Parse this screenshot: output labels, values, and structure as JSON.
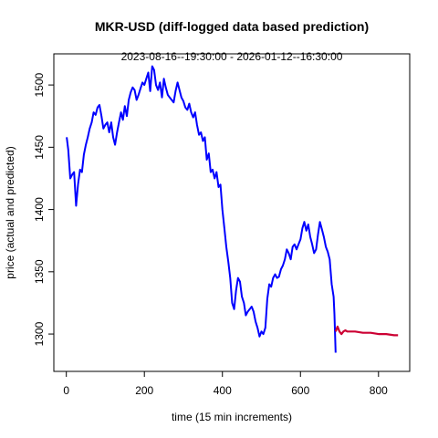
{
  "chart_data": {
    "type": "line",
    "title": "MKR-USD (diff-logged data based prediction)",
    "subtitle": "2023-08-16--19:30:00  -  2026-01-12--16:30:00",
    "xlabel": "time (15 min increments)",
    "ylabel": "price (actual and predicted)",
    "xlim": [
      -32,
      880
    ],
    "ylim": [
      1270,
      1525
    ],
    "x_ticks": [
      0,
      200,
      400,
      600,
      800
    ],
    "y_ticks": [
      1300,
      1350,
      1400,
      1450,
      1500
    ],
    "grid": false,
    "colors": {
      "actual": "#0000ff",
      "predicted": "#cc0033"
    },
    "series": [
      {
        "x": [
          1,
          5,
          10,
          15,
          20,
          25,
          30,
          35,
          40,
          45,
          50,
          55,
          60,
          65,
          70,
          75,
          80,
          85,
          90,
          95,
          100,
          105,
          110,
          115,
          120,
          125,
          130,
          135,
          140,
          145,
          150,
          155,
          160,
          165,
          170,
          175,
          180,
          185,
          190,
          195,
          200,
          205,
          210,
          215,
          220,
          225,
          230,
          235,
          240,
          245,
          250,
          255,
          260,
          265,
          270,
          275,
          280,
          285,
          290,
          295,
          300,
          305,
          310,
          315,
          320,
          325,
          330,
          335,
          340,
          345,
          350,
          355,
          360,
          365,
          370,
          375,
          380,
          385,
          390,
          395,
          400,
          405,
          410,
          415,
          420,
          425,
          430,
          435,
          440,
          445,
          450,
          455,
          460,
          465,
          470,
          475,
          480,
          485,
          490,
          495,
          500,
          505,
          510,
          515,
          520,
          525,
          530,
          535,
          540,
          545,
          550,
          555,
          560,
          565,
          570,
          575,
          580,
          585,
          590,
          595,
          600,
          605,
          610,
          615,
          620,
          625,
          630,
          635,
          640,
          645,
          650,
          655,
          660,
          665,
          670,
          675,
          680,
          685,
          687,
          690
        ],
        "values": [
          1458,
          1448,
          1425,
          1428,
          1430,
          1403,
          1420,
          1432,
          1430,
          1444,
          1452,
          1458,
          1465,
          1470,
          1478,
          1476,
          1482,
          1484,
          1475,
          1465,
          1468,
          1470,
          1462,
          1470,
          1458,
          1452,
          1462,
          1470,
          1478,
          1472,
          1483,
          1475,
          1488,
          1494,
          1498,
          1496,
          1488,
          1492,
          1497,
          1502,
          1500,
          1505,
          1510,
          1495,
          1515,
          1512,
          1500,
          1496,
          1502,
          1490,
          1505,
          1498,
          1492,
          1490,
          1488,
          1486,
          1495,
          1502,
          1496,
          1490,
          1487,
          1482,
          1480,
          1485,
          1478,
          1474,
          1478,
          1468,
          1460,
          1462,
          1455,
          1458,
          1440,
          1445,
          1430,
          1432,
          1425,
          1430,
          1418,
          1420,
          1400,
          1385,
          1370,
          1358,
          1345,
          1325,
          1320,
          1335,
          1345,
          1342,
          1330,
          1325,
          1315,
          1318,
          1320,
          1322,
          1318,
          1310,
          1305,
          1298,
          1302,
          1300,
          1305,
          1328,
          1340,
          1338,
          1345,
          1348,
          1345,
          1346,
          1352,
          1355,
          1360,
          1368,
          1365,
          1360,
          1370,
          1372,
          1368,
          1372,
          1376,
          1385,
          1390,
          1383,
          1388,
          1378,
          1372,
          1365,
          1368,
          1380,
          1390,
          1384,
          1378,
          1370,
          1366,
          1360,
          1340,
          1330,
          1316,
          1285
        ]
      },
      {
        "x": [
          690,
          695,
          700,
          705,
          710,
          715,
          720,
          740,
          760,
          780,
          800,
          820,
          840,
          850
        ],
        "values": [
          1302,
          1306,
          1302,
          1300,
          1302,
          1303,
          1302,
          1302,
          1301,
          1301,
          1300,
          1300,
          1299,
          1299
        ]
      }
    ]
  }
}
